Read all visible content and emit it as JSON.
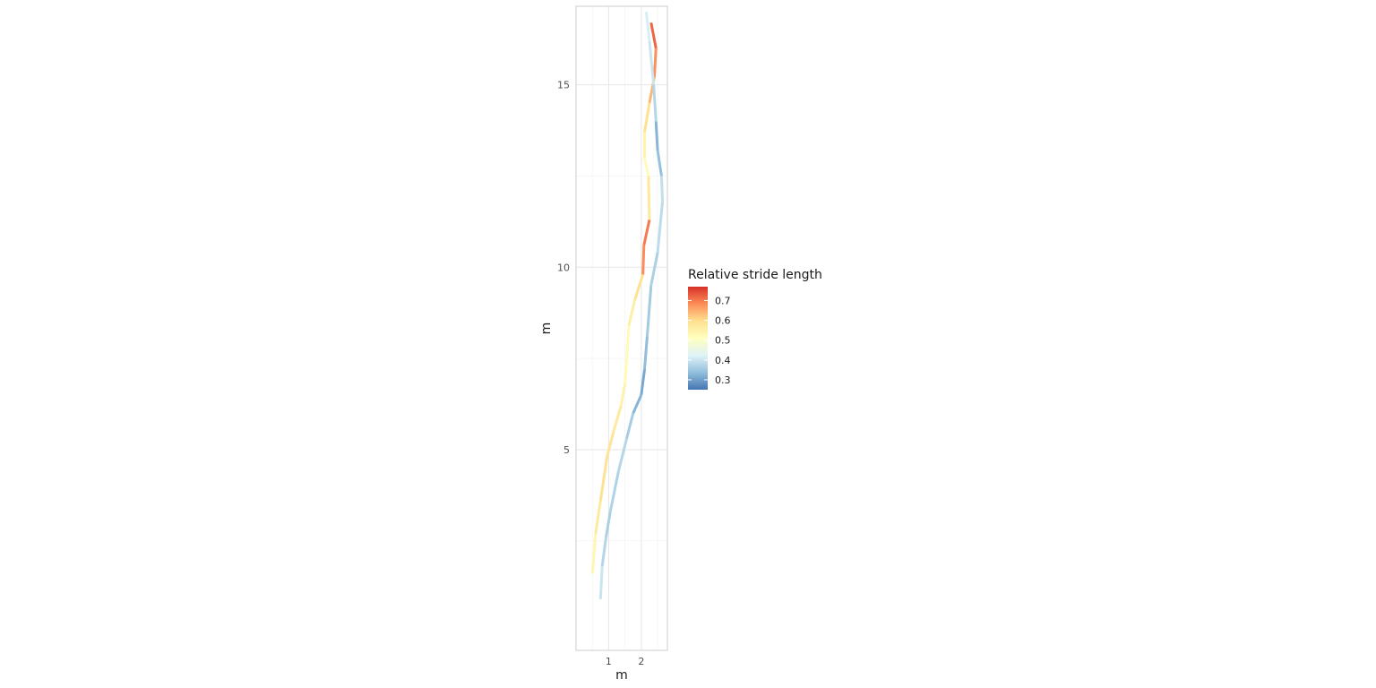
{
  "chart_data": {
    "type": "line",
    "title": "",
    "xlabel": "m",
    "ylabel": "m",
    "xlim": [
      0.0,
      2.8
    ],
    "ylim": [
      -0.5,
      17.15
    ],
    "x_ticks": [
      1,
      2
    ],
    "x_tick_labels": [
      "1",
      "2"
    ],
    "y_ticks": [
      5,
      10,
      15
    ],
    "y_tick_labels": [
      "5",
      "10",
      "15"
    ],
    "grid": true,
    "legend": {
      "title": "Relative stride length",
      "position": "right",
      "range": [
        0.25,
        0.77
      ],
      "breaks": [
        0.3,
        0.4,
        0.5,
        0.6,
        0.7
      ],
      "break_labels": [
        "0.3",
        "0.4",
        "0.5",
        "0.6",
        "0.7"
      ],
      "palette": [
        "#4575b4",
        "#91bfdb",
        "#e0f3f8",
        "#ffffbf",
        "#fee090",
        "#fc8d59",
        "#d73027"
      ]
    },
    "series": [
      {
        "points": [
          {
            "x": 0.5,
            "y": 1.6,
            "v": 0.52
          },
          {
            "x": 0.6,
            "y": 2.7,
            "v": 0.55
          },
          {
            "x": 0.75,
            "y": 3.6,
            "v": 0.59
          },
          {
            "x": 0.95,
            "y": 4.8,
            "v": 0.59
          },
          {
            "x": 1.15,
            "y": 5.5,
            "v": 0.58
          },
          {
            "x": 1.38,
            "y": 6.2,
            "v": 0.56
          },
          {
            "x": 1.5,
            "y": 6.8,
            "v": 0.53
          },
          {
            "x": 1.62,
            "y": 8.4,
            "v": 0.52
          },
          {
            "x": 1.8,
            "y": 9.1,
            "v": 0.59
          },
          {
            "x": 2.05,
            "y": 9.8,
            "v": 0.6
          },
          {
            "x": 2.08,
            "y": 10.6,
            "v": 0.77
          },
          {
            "x": 2.25,
            "y": 11.3,
            "v": 0.63
          },
          {
            "x": 2.22,
            "y": 12.5,
            "v": 0.52
          },
          {
            "x": 2.1,
            "y": 13.0,
            "v": 0.52
          },
          {
            "x": 2.1,
            "y": 13.7,
            "v": 0.57
          },
          {
            "x": 2.25,
            "y": 14.5,
            "v": 0.62
          },
          {
            "x": 2.4,
            "y": 15.2,
            "v": 0.66
          },
          {
            "x": 2.45,
            "y": 16.0,
            "v": 0.7
          },
          {
            "x": 2.3,
            "y": 16.7,
            "v": 0.74
          }
        ]
      },
      {
        "points": [
          {
            "x": 0.75,
            "y": 0.9,
            "v": 0.42
          },
          {
            "x": 0.8,
            "y": 1.8,
            "v": 0.38
          },
          {
            "x": 0.92,
            "y": 2.6,
            "v": 0.37
          },
          {
            "x": 1.05,
            "y": 3.3,
            "v": 0.36
          },
          {
            "x": 1.3,
            "y": 4.4,
            "v": 0.38
          },
          {
            "x": 1.55,
            "y": 5.3,
            "v": 0.37
          },
          {
            "x": 1.75,
            "y": 6.0,
            "v": 0.35
          },
          {
            "x": 2.0,
            "y": 6.5,
            "v": 0.3
          },
          {
            "x": 2.1,
            "y": 7.2,
            "v": 0.32
          },
          {
            "x": 2.18,
            "y": 8.1,
            "v": 0.35
          },
          {
            "x": 2.3,
            "y": 9.5,
            "v": 0.36
          },
          {
            "x": 2.5,
            "y": 10.4,
            "v": 0.37
          },
          {
            "x": 2.65,
            "y": 11.8,
            "v": 0.4
          },
          {
            "x": 2.62,
            "y": 12.5,
            "v": 0.38
          },
          {
            "x": 2.5,
            "y": 13.2,
            "v": 0.3
          },
          {
            "x": 2.45,
            "y": 14.0,
            "v": 0.35
          },
          {
            "x": 2.38,
            "y": 15.0,
            "v": 0.4
          },
          {
            "x": 2.25,
            "y": 16.2,
            "v": 0.4
          },
          {
            "x": 2.15,
            "y": 17.0,
            "v": 0.43
          }
        ]
      }
    ]
  }
}
